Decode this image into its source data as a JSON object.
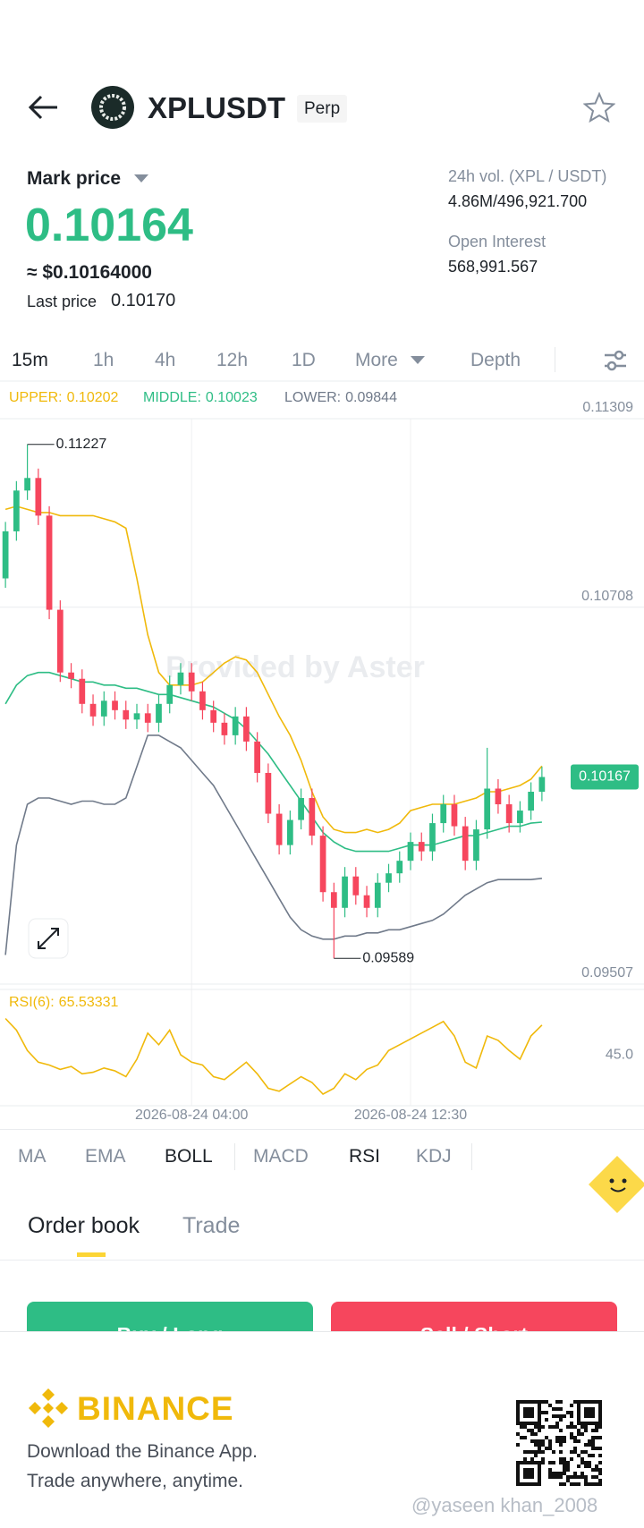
{
  "header": {
    "symbol": "XPLUSDT",
    "contract": "Perp"
  },
  "price": {
    "mark_label": "Mark price",
    "mark_price": "0.10164",
    "usd_equiv": "≈ $0.10164000",
    "last_label": "Last price",
    "last_price": "0.10170"
  },
  "stats": [
    {
      "label": "24h vol. (XPL / USDT)",
      "value": "4.86M/496,921.700"
    },
    {
      "label": "Open Interest",
      "value": "568,991.567"
    }
  ],
  "intervals": [
    "15m",
    "1h",
    "4h",
    "12h",
    "1D",
    "More",
    "Depth"
  ],
  "chart_data": [
    {
      "type": "candlestick",
      "watermark": "Provided by Aster",
      "up_color": "#2ebd85",
      "down_color": "#f6465d",
      "grid": true,
      "ylim": [
        0.09507,
        0.11309
      ],
      "yticks": [
        0.09507,
        0.10708,
        0.11309
      ],
      "open": [
        0.108,
        0.1095,
        0.1108,
        0.1112,
        0.11,
        0.107,
        0.105,
        0.1048,
        0.104,
        0.1036,
        0.1041,
        0.1038,
        0.1035,
        0.1037,
        0.1034,
        0.104,
        0.1046,
        0.105,
        0.1044,
        0.1038,
        0.1034,
        0.103,
        0.1036,
        0.1028,
        0.1018,
        0.1005,
        0.0995,
        0.1003,
        0.101,
        0.0998,
        0.098,
        0.0975,
        0.0985,
        0.0979,
        0.0975,
        0.0983,
        0.0986,
        0.099,
        0.0996,
        0.0993,
        0.1002,
        0.1008,
        0.1001,
        0.099,
        0.1,
        0.1013,
        0.1008,
        0.1002,
        0.1006,
        0.1012
      ],
      "high": [
        0.1098,
        0.1111,
        0.11227,
        0.1115,
        0.1103,
        0.1073,
        0.1053,
        0.1051,
        0.1043,
        0.1044,
        0.1044,
        0.1041,
        0.104,
        0.104,
        0.1043,
        0.1049,
        0.1053,
        0.1053,
        0.1047,
        0.1041,
        0.1037,
        0.1039,
        0.1039,
        0.1031,
        0.1021,
        0.1008,
        0.1006,
        0.1013,
        0.1013,
        0.1001,
        0.0983,
        0.0988,
        0.0988,
        0.0982,
        0.0986,
        0.0989,
        0.0993,
        0.0999,
        0.0999,
        0.1005,
        0.1011,
        0.1011,
        0.1004,
        0.1003,
        0.1026,
        0.1016,
        0.1011,
        0.1009,
        0.1015,
        0.102
      ],
      "low": [
        0.1077,
        0.1092,
        0.1105,
        0.1097,
        0.1067,
        0.1047,
        0.1045,
        0.1037,
        0.1033,
        0.1033,
        0.1035,
        0.1032,
        0.1032,
        0.1031,
        0.1031,
        0.1037,
        0.1043,
        0.1041,
        0.1035,
        0.1031,
        0.1027,
        0.1027,
        0.1025,
        0.1015,
        0.1002,
        0.0992,
        0.0992,
        0.1,
        0.0995,
        0.0977,
        0.09589,
        0.0972,
        0.0976,
        0.0972,
        0.0972,
        0.098,
        0.0983,
        0.0987,
        0.099,
        0.099,
        0.0999,
        0.0998,
        0.0987,
        0.0987,
        0.0997,
        0.1005,
        0.0999,
        0.0999,
        0.1003,
        0.1009
      ],
      "close": [
        0.1095,
        0.1108,
        0.1112,
        0.11,
        0.107,
        0.105,
        0.1048,
        0.104,
        0.1036,
        0.1041,
        0.1038,
        0.1035,
        0.1037,
        0.1034,
        0.104,
        0.1046,
        0.105,
        0.1044,
        0.1038,
        0.1034,
        0.103,
        0.1036,
        0.1028,
        0.1018,
        0.1005,
        0.0995,
        0.1003,
        0.101,
        0.0998,
        0.098,
        0.0975,
        0.0985,
        0.0979,
        0.0975,
        0.0983,
        0.0986,
        0.099,
        0.0996,
        0.0993,
        0.1002,
        0.1008,
        0.1001,
        0.099,
        0.1,
        0.1013,
        0.1008,
        0.1002,
        0.1006,
        0.1012,
        0.10167
      ],
      "series": [
        {
          "name": "UPPER:",
          "color": "#f0b90b",
          "values": [
            0.1102,
            0.1103,
            0.1102,
            0.1101,
            0.1101,
            0.11,
            0.11,
            0.11,
            0.11,
            0.1099,
            0.1098,
            0.1096,
            0.108,
            0.1062,
            0.105,
            0.1046,
            0.1046,
            0.1046,
            0.1047,
            0.105,
            0.1053,
            0.1055,
            0.1054,
            0.105,
            0.1043,
            0.1036,
            0.103,
            0.1022,
            0.1012,
            0.1004,
            0.1,
            0.0999,
            0.0999,
            0.1,
            0.0999,
            0.1,
            0.1002,
            0.1006,
            0.1007,
            0.1008,
            0.1008,
            0.1008,
            0.1009,
            0.101,
            0.1012,
            0.1012,
            0.1013,
            0.1014,
            0.1016,
            0.10202
          ]
        },
        {
          "name": "MIDDLE:",
          "color": "#2ebd85",
          "values": [
            0.104,
            0.1046,
            0.1049,
            0.105,
            0.105,
            0.1049,
            0.1048,
            0.1047,
            0.1047,
            0.1046,
            0.1046,
            0.1045,
            0.1045,
            0.1044,
            0.1043,
            0.1043,
            0.1042,
            0.1041,
            0.104,
            0.1039,
            0.1037,
            0.1035,
            0.1032,
            0.1028,
            0.1024,
            0.1019,
            0.1014,
            0.1009,
            0.1004,
            0.0999,
            0.0996,
            0.0994,
            0.0993,
            0.0993,
            0.0993,
            0.0993,
            0.0994,
            0.0995,
            0.0995,
            0.0995,
            0.0996,
            0.0997,
            0.0998,
            0.0998,
            0.0999,
            0.1,
            0.1001,
            0.1001,
            0.1002,
            0.10023
          ]
        },
        {
          "name": "LOWER:",
          "color": "#707a8a",
          "values": [
            0.096,
            0.0995,
            0.1008,
            0.101,
            0.101,
            0.1009,
            0.1008,
            0.1009,
            0.1009,
            0.1008,
            0.1008,
            0.101,
            0.102,
            0.103,
            0.103,
            0.1028,
            0.1026,
            0.1022,
            0.1018,
            0.1014,
            0.1008,
            0.1002,
            0.0996,
            0.099,
            0.0984,
            0.0978,
            0.0972,
            0.0968,
            0.0966,
            0.0965,
            0.0965,
            0.0966,
            0.0966,
            0.0967,
            0.0967,
            0.0968,
            0.0968,
            0.0969,
            0.097,
            0.0971,
            0.0973,
            0.0976,
            0.0979,
            0.0981,
            0.0983,
            0.0984,
            0.0984,
            0.0984,
            0.0984,
            0.09844
          ]
        }
      ]
    },
    {
      "type": "line",
      "ylim": [
        10,
        90
      ],
      "yticks": [
        {
          "value": 45,
          "label": "45.0"
        }
      ],
      "xticks": [
        {
          "value": 17,
          "label": "2026-08-24 04:00"
        },
        {
          "value": 37,
          "label": "2026-08-24 12:30"
        }
      ],
      "series": [
        {
          "name": "RSI(6):",
          "color": "#f0b90b",
          "values": [
            70,
            62,
            48,
            40,
            38,
            35,
            37,
            32,
            33,
            36,
            34,
            30,
            42,
            60,
            52,
            62,
            45,
            40,
            38,
            30,
            28,
            34,
            40,
            32,
            22,
            20,
            25,
            30,
            26,
            18,
            22,
            32,
            28,
            35,
            38,
            48,
            52,
            56,
            60,
            64,
            68,
            58,
            40,
            36,
            58,
            55,
            48,
            42,
            58,
            65.53331
          ]
        }
      ]
    }
  ],
  "indicators": [
    "MA",
    "EMA",
    "BOLL",
    "MACD",
    "RSI",
    "KDJ"
  ],
  "tabs": [
    "Order book",
    "Trade"
  ],
  "buttons": [
    "Buy / Long",
    "Sell / Short"
  ],
  "footer": {
    "brand": "BINANCE",
    "line1": "Download the Binance App.",
    "line2": "Trade anywhere, anytime.",
    "watermark": "@yaseen khan_2008"
  }
}
